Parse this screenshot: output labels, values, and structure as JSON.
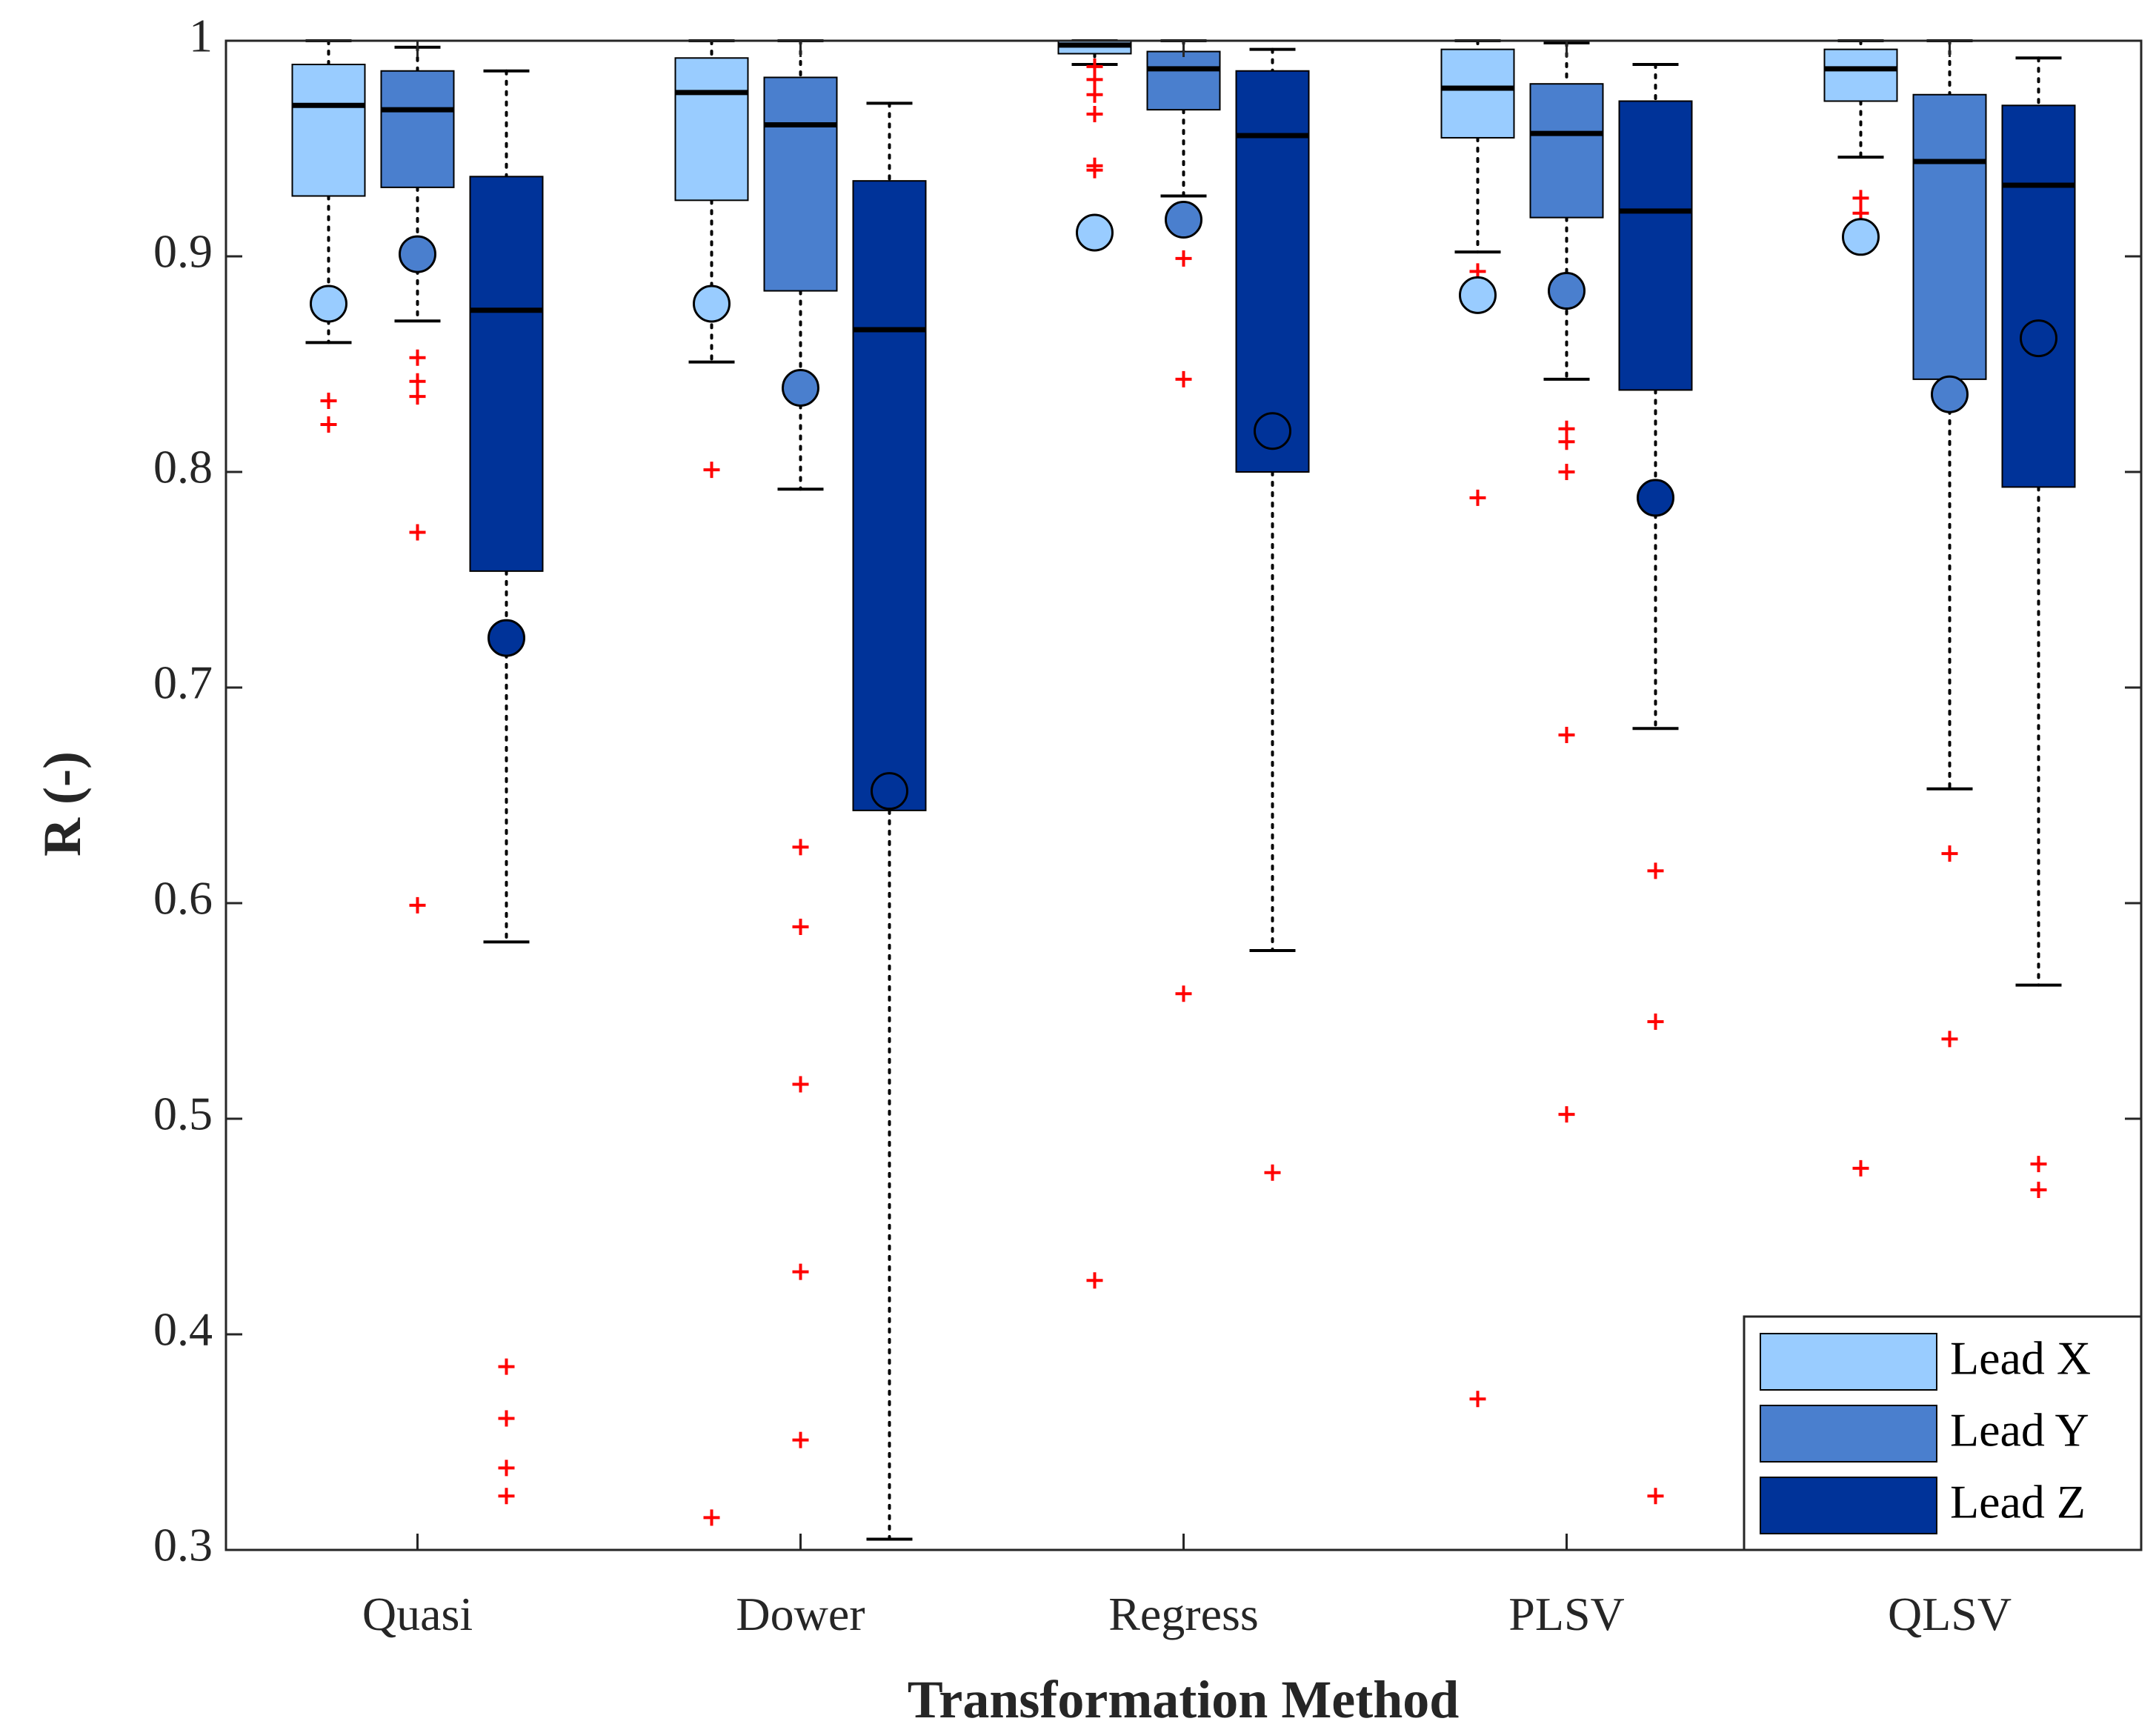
{
  "chart_data": {
    "type": "boxplot",
    "title": "",
    "xlabel": "Transformation Method",
    "ylabel": "R (-)",
    "ylim": [
      0.3,
      1.0
    ],
    "yticks": [
      0.3,
      0.4,
      0.5,
      0.6,
      0.7,
      0.8,
      0.9,
      1.0
    ],
    "ytick_labels": [
      "0.3",
      "0.4",
      "0.5",
      "0.6",
      "0.7",
      "0.8",
      "0.9",
      "1"
    ],
    "categories": [
      "Quasi",
      "Dower",
      "Regress",
      "PLSV",
      "QLSV"
    ],
    "series": [
      {
        "name": "Lead X",
        "color": "#99CCFF",
        "boxes": [
          {
            "q1": 0.928,
            "median": 0.97,
            "q3": 0.989,
            "whisker_low": 0.86,
            "whisker_high": 1.0,
            "mean": 0.878,
            "outliers": [
              0.822,
              0.833
            ]
          },
          {
            "q1": 0.926,
            "median": 0.976,
            "q3": 0.992,
            "whisker_low": 0.851,
            "whisker_high": 1.0,
            "mean": 0.878,
            "outliers": [
              0.801,
              0.315
            ]
          },
          {
            "q1": 0.994,
            "median": 0.998,
            "q3": 1.0,
            "whisker_low": 0.989,
            "whisker_high": 1.0,
            "mean": 0.911,
            "outliers": [
              0.988,
              0.982,
              0.975,
              0.966,
              0.942,
              0.94,
              0.425
            ]
          },
          {
            "q1": 0.955,
            "median": 0.978,
            "q3": 0.996,
            "whisker_low": 0.902,
            "whisker_high": 1.0,
            "mean": 0.882,
            "outliers": [
              0.893,
              0.788,
              0.37
            ]
          },
          {
            "q1": 0.972,
            "median": 0.987,
            "q3": 0.996,
            "whisker_low": 0.946,
            "whisker_high": 1.0,
            "mean": 0.909,
            "outliers": [
              0.927,
              0.92,
              0.477
            ]
          }
        ]
      },
      {
        "name": "Lead Y",
        "color": "#4A7FCE",
        "boxes": [
          {
            "q1": 0.932,
            "median": 0.968,
            "q3": 0.986,
            "whisker_low": 0.87,
            "whisker_high": 0.997,
            "mean": 0.901,
            "outliers": [
              0.853,
              0.842,
              0.835,
              0.772,
              0.599
            ]
          },
          {
            "q1": 0.884,
            "median": 0.961,
            "q3": 0.983,
            "whisker_low": 0.792,
            "whisker_high": 1.0,
            "mean": 0.839,
            "outliers": [
              0.626,
              0.589,
              0.516,
              0.429,
              0.351
            ]
          },
          {
            "q1": 0.968,
            "median": 0.987,
            "q3": 0.995,
            "whisker_low": 0.928,
            "whisker_high": 1.0,
            "mean": 0.917,
            "outliers": [
              0.899,
              0.843,
              0.558
            ]
          },
          {
            "q1": 0.918,
            "median": 0.957,
            "q3": 0.98,
            "whisker_low": 0.843,
            "whisker_high": 0.999,
            "mean": 0.884,
            "outliers": [
              0.82,
              0.814,
              0.8,
              0.678,
              0.502
            ]
          },
          {
            "q1": 0.843,
            "median": 0.944,
            "q3": 0.975,
            "whisker_low": 0.653,
            "whisker_high": 1.0,
            "mean": 0.836,
            "outliers": [
              0.623,
              0.537
            ]
          }
        ]
      },
      {
        "name": "Lead Z",
        "color": "#003399",
        "boxes": [
          {
            "q1": 0.754,
            "median": 0.875,
            "q3": 0.937,
            "whisker_low": 0.582,
            "whisker_high": 0.986,
            "mean": 0.723,
            "outliers": [
              0.385,
              0.361,
              0.338,
              0.325
            ]
          },
          {
            "q1": 0.643,
            "median": 0.866,
            "q3": 0.935,
            "whisker_low": 0.305,
            "whisker_high": 0.971,
            "mean": 0.652,
            "outliers": []
          },
          {
            "q1": 0.8,
            "median": 0.956,
            "q3": 0.986,
            "whisker_low": 0.578,
            "whisker_high": 0.996,
            "mean": 0.819,
            "outliers": [
              0.475
            ]
          },
          {
            "q1": 0.838,
            "median": 0.921,
            "q3": 0.972,
            "whisker_low": 0.681,
            "whisker_high": 0.989,
            "mean": 0.788,
            "outliers": [
              0.615,
              0.545,
              0.325
            ]
          },
          {
            "q1": 0.793,
            "median": 0.933,
            "q3": 0.97,
            "whisker_low": 0.562,
            "whisker_high": 0.992,
            "mean": 0.862,
            "outliers": [
              0.479,
              0.467
            ]
          }
        ]
      }
    ],
    "legend": {
      "position": "bottom-right",
      "entries": [
        "Lead X",
        "Lead Y",
        "Lead Z"
      ]
    },
    "grid": false
  }
}
